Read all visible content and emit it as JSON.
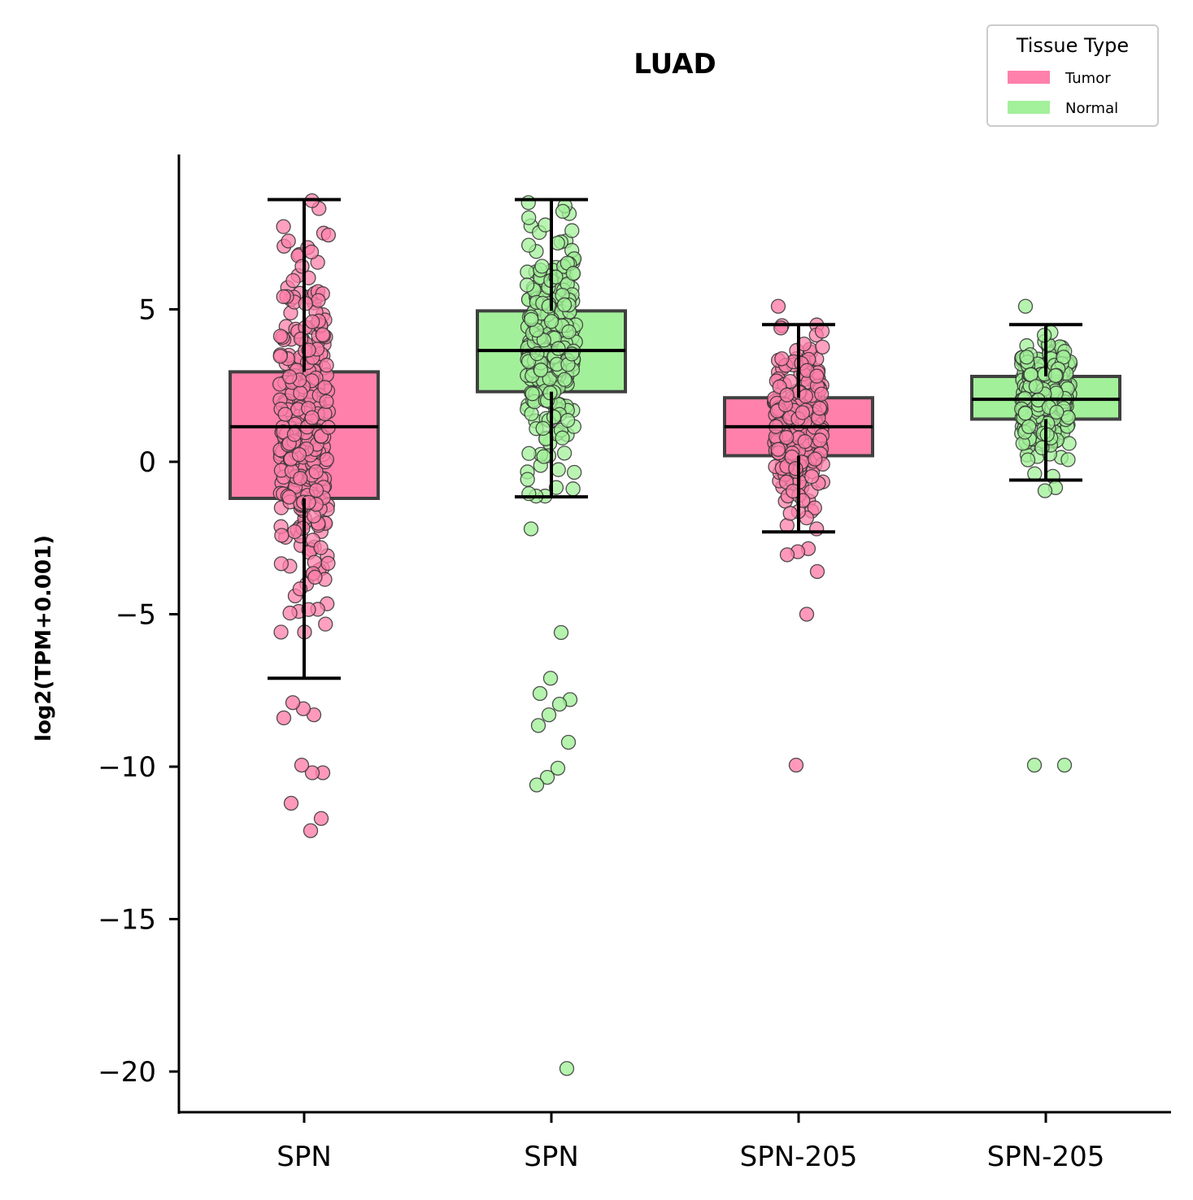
{
  "chart_data": {
    "type": "box",
    "title": "LUAD",
    "xlabel": "",
    "ylabel": "log2(TPM+0.001)",
    "ylim": [
      -21.5,
      10
    ],
    "yticks": [
      5,
      0,
      -5,
      -10,
      -15,
      -20
    ],
    "ytick_labels": [
      "5",
      "0",
      "−5",
      "−10",
      "−15",
      "−20"
    ],
    "categories": [
      "SPN",
      "SPN",
      "SPN-205",
      "SPN-205"
    ],
    "legend": {
      "title": "Tissue Type",
      "placement": "top-right",
      "entries": [
        {
          "label": "Tumor",
          "color": "#ff80ab"
        },
        {
          "label": "Normal",
          "color": "#a3f09a"
        }
      ]
    },
    "colors": {
      "Tumor": "#ff80ab",
      "Normal": "#a3f09a",
      "box_edge": "#404040",
      "whisker": "#000000"
    },
    "boxes": [
      {
        "category": "SPN",
        "group": "Tumor",
        "whisker_low": -7.1,
        "q1": -1.2,
        "median": 1.15,
        "q3": 2.95,
        "whisker_high": 8.6,
        "outliers": [
          -8.4,
          -8.3,
          -8.1,
          -7.9,
          -10.2,
          -10.2,
          -9.95,
          -11.2,
          -11.7,
          -12.1
        ]
      },
      {
        "category": "SPN",
        "group": "Normal",
        "whisker_low": -1.15,
        "q1": 2.3,
        "median": 3.65,
        "q3": 4.95,
        "whisker_high": 8.6,
        "outliers": [
          -2.2,
          -5.6,
          -7.1,
          -7.6,
          -7.8,
          -7.95,
          -8.3,
          -8.65,
          -9.2,
          -10.05,
          -10.35,
          -10.6,
          -19.9
        ]
      },
      {
        "category": "SPN-205",
        "group": "Tumor",
        "whisker_low": -2.3,
        "q1": 0.2,
        "median": 1.15,
        "q3": 2.1,
        "whisker_high": 4.5,
        "outliers": [
          5.1,
          -2.85,
          -2.95,
          -3.05,
          -3.6,
          -5.0,
          -9.95
        ]
      },
      {
        "category": "SPN-205",
        "group": "Normal",
        "whisker_low": -0.6,
        "q1": 1.4,
        "median": 2.05,
        "q3": 2.8,
        "whisker_high": 4.5,
        "outliers": [
          5.1,
          -0.85,
          -0.95,
          -9.95,
          -9.95
        ]
      }
    ]
  }
}
